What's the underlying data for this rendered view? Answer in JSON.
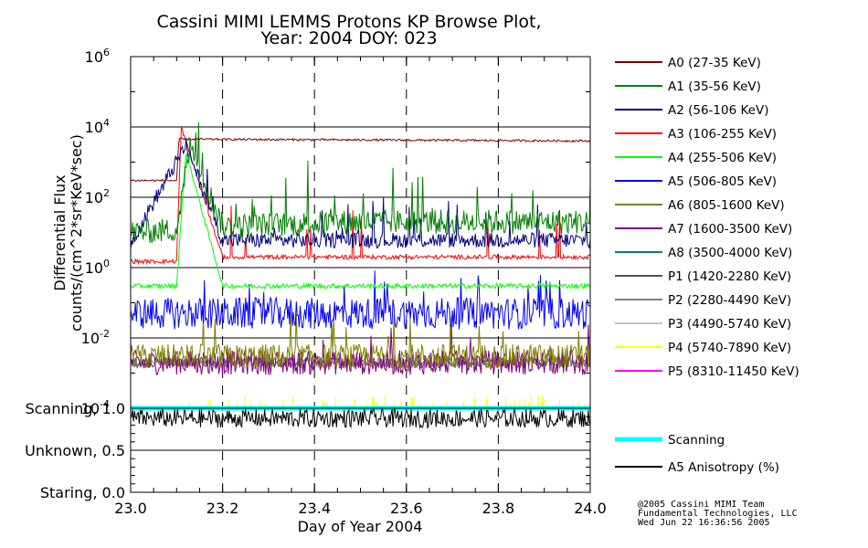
{
  "chart_data": {
    "type": "line",
    "title": "Cassini MIMI LEMMS Protons KP Browse Plot,",
    "subtitle": "Year: 2004 DOY: 023",
    "xlabel": "Day of Year 2004",
    "ylabel_line1": "Differential Flux",
    "ylabel_line2": "counts/(cm^2*sr*KeV*sec)",
    "xlim": [
      23.0,
      24.0
    ],
    "ylim": [
      0.0001,
      1000000
    ],
    "yscale": "log",
    "x_ticks": [
      "23.0",
      "23.2",
      "23.4",
      "23.6",
      "23.8",
      "24.0"
    ],
    "y_ticks": [
      {
        "base": "10",
        "exp": "-4"
      },
      {
        "base": "10",
        "exp": "-2"
      },
      {
        "base": "10",
        "exp": "0"
      },
      {
        "base": "10",
        "exp": "2"
      },
      {
        "base": "10",
        "exp": "4"
      },
      {
        "base": "10",
        "exp": "6"
      }
    ],
    "grid": true,
    "legend_position": "right",
    "series": [
      {
        "name": "A0 (27-35 KeV)",
        "color": "#800000",
        "values": [
          [
            23.0,
            300
          ],
          [
            23.1,
            300
          ],
          [
            23.105,
            4500
          ],
          [
            24.0,
            4000
          ]
        ]
      },
      {
        "name": "A1 (35-56 KeV)",
        "color": "#008000",
        "values": [
          [
            23.0,
            10
          ],
          [
            23.1,
            12
          ],
          [
            23.13,
            3000
          ],
          [
            23.2,
            15
          ],
          [
            23.5,
            20
          ],
          [
            24.0,
            20
          ]
        ]
      },
      {
        "name": "A2 (56-106 KeV)",
        "color": "#000080",
        "values": [
          [
            23.0,
            5
          ],
          [
            23.12,
            3000
          ],
          [
            23.2,
            6
          ],
          [
            24.0,
            6
          ]
        ]
      },
      {
        "name": "A3 (106-255 KeV)",
        "color": "#ff0000",
        "values": [
          [
            23.0,
            1.5
          ],
          [
            23.1,
            1.5
          ],
          [
            23.11,
            10000
          ],
          [
            23.2,
            2
          ],
          [
            24.0,
            2
          ]
        ]
      },
      {
        "name": "A4 (255-506 KeV)",
        "color": "#00ff00",
        "values": [
          [
            23.0,
            0.3
          ],
          [
            23.1,
            0.3
          ],
          [
            23.12,
            2000
          ],
          [
            23.2,
            0.3
          ],
          [
            24.0,
            0.3
          ]
        ]
      },
      {
        "name": "A5 (506-805 KeV)",
        "color": "#0000ff",
        "values": [
          [
            23.0,
            0.05
          ],
          [
            23.5,
            0.05
          ],
          [
            24.0,
            0.05
          ]
        ]
      },
      {
        "name": "A6 (805-1600 KeV)",
        "color": "#808000",
        "values": [
          [
            23.0,
            0.003
          ],
          [
            23.5,
            0.003
          ],
          [
            24.0,
            0.003
          ]
        ]
      },
      {
        "name": "A7 (1600-3500 KeV)",
        "color": "#800080",
        "values": [
          [
            23.0,
            0.002
          ],
          [
            23.5,
            0.002
          ],
          [
            24.0,
            0.002
          ]
        ]
      },
      {
        "name": "A8 (3500-4000 KeV)",
        "color": "#008080",
        "values": []
      },
      {
        "name": "P1 (1420-2280 KeV)",
        "color": "#505050",
        "values": [
          [
            23.0,
            0.002
          ],
          [
            23.5,
            0.002
          ],
          [
            24.0,
            0.002
          ]
        ]
      },
      {
        "name": "P2 (2280-4490 KeV)",
        "color": "#808080",
        "values": [
          [
            23.0,
            0.002
          ],
          [
            23.5,
            0.002
          ],
          [
            24.0,
            0.002
          ]
        ]
      },
      {
        "name": "P3 (4490-5740 KeV)",
        "color": "#c0c0c0",
        "values": []
      },
      {
        "name": "P4 (5740-7890 KeV)",
        "color": "#ffff00",
        "values": [
          [
            23.0,
            0.0001
          ],
          [
            24.0,
            0.0001
          ]
        ]
      },
      {
        "name": "P5 (8310-11450 KeV)",
        "color": "#ff00ff",
        "values": []
      }
    ],
    "lower_panel": {
      "y_ticks": [
        "Scanning, 1.0",
        "Unknown, 0.5",
        "Staring, 0.0"
      ],
      "series": [
        {
          "name": "Scanning",
          "color": "#00ffff",
          "values": [
            [
              23.0,
              1.0
            ],
            [
              24.0,
              1.0
            ]
          ]
        },
        {
          "name": "A5 Anisotropy (%)",
          "color": "#000000",
          "values": [
            [
              23.0,
              0.88
            ],
            [
              23.5,
              0.88
            ],
            [
              24.0,
              0.88
            ]
          ]
        }
      ]
    }
  },
  "footer": {
    "line1": "@2005 Cassini MIMI Team",
    "line2": "Fundamental Technologies, LLC",
    "line3": "Wed Jun 22 16:36:56 2005"
  }
}
